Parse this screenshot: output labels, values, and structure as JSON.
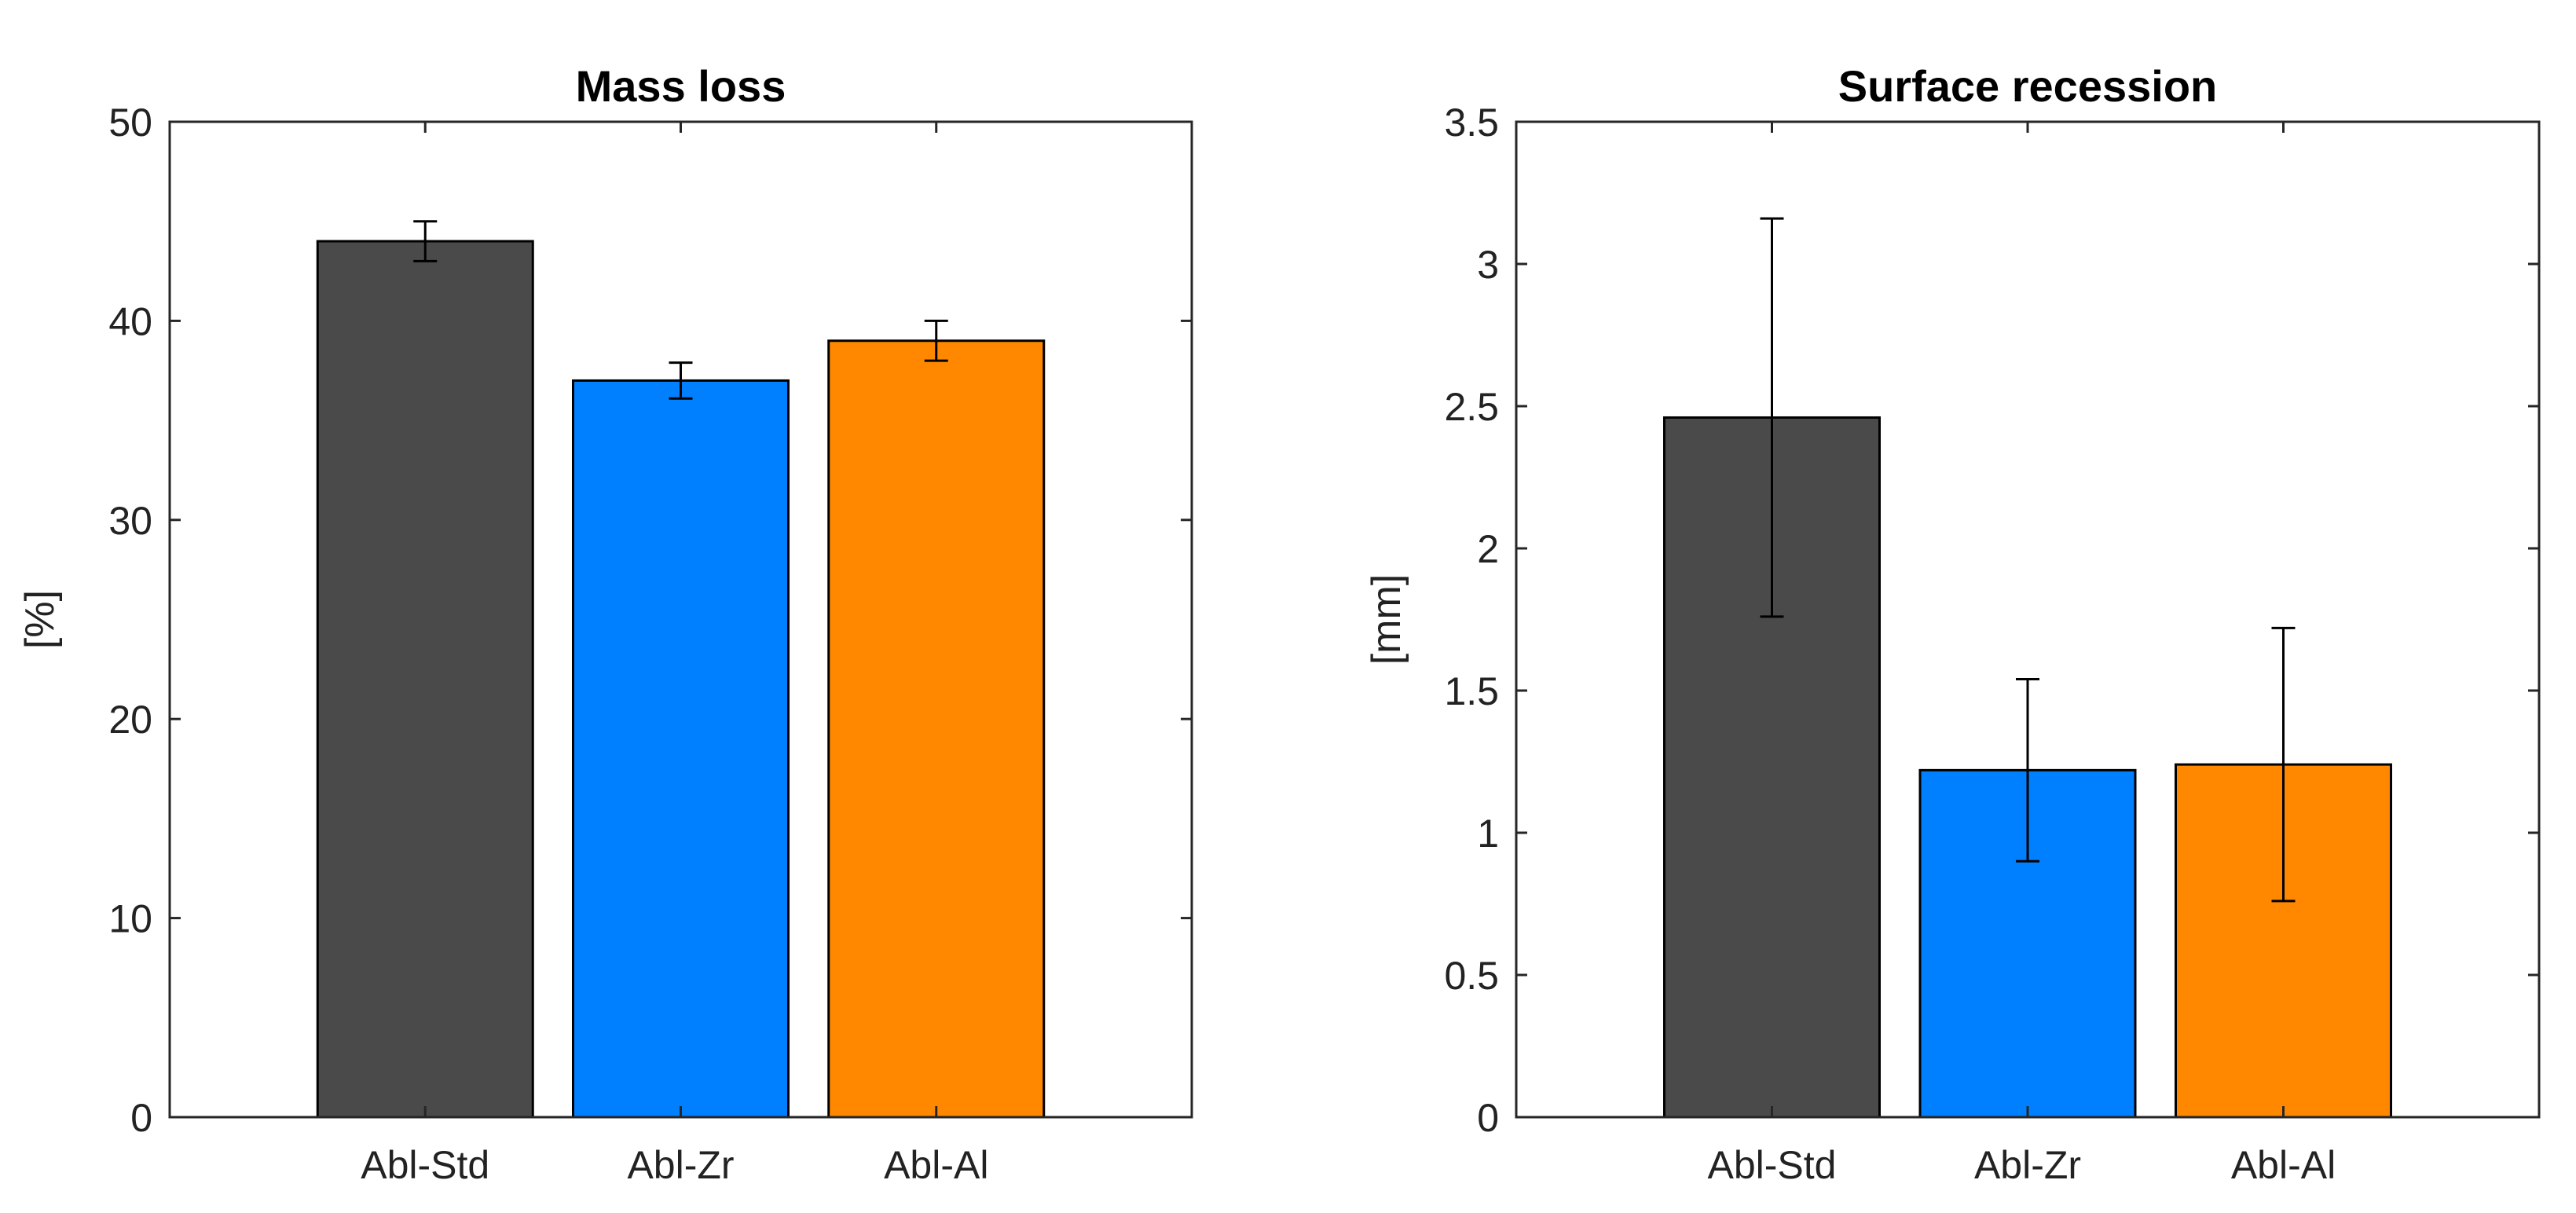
{
  "chart_data": [
    {
      "type": "bar",
      "title": "Mass loss",
      "xlabel": "",
      "ylabel": "[%]",
      "categories": [
        "Abl-Std",
        "Abl-Zr",
        "Abl-Al"
      ],
      "values": [
        44,
        37,
        39
      ],
      "errors": [
        1.0,
        0.9,
        1.0
      ],
      "colors": [
        "#4a4a4a",
        "#0080ff",
        "#ff8800"
      ],
      "ylim": [
        0,
        50
      ],
      "yticks": [
        0,
        10,
        20,
        30,
        40,
        50
      ],
      "ytick_labels": [
        "0",
        "10",
        "20",
        "30",
        "40",
        "50"
      ],
      "grid": false
    },
    {
      "type": "bar",
      "title": "Surface recession",
      "xlabel": "",
      "ylabel": "[mm]",
      "categories": [
        "Abl-Std",
        "Abl-Zr",
        "Abl-Al"
      ],
      "values": [
        2.46,
        1.22,
        1.24
      ],
      "errors": [
        0.7,
        0.32,
        0.48
      ],
      "colors": [
        "#4a4a4a",
        "#0080ff",
        "#ff8800"
      ],
      "ylim": [
        0,
        3.5
      ],
      "yticks": [
        0,
        0.5,
        1,
        1.5,
        2,
        2.5,
        3,
        3.5
      ],
      "ytick_labels": [
        "0",
        "0.5",
        "1",
        "1.5",
        "2",
        "2.5",
        "3",
        "3.5"
      ],
      "grid": false
    }
  ]
}
